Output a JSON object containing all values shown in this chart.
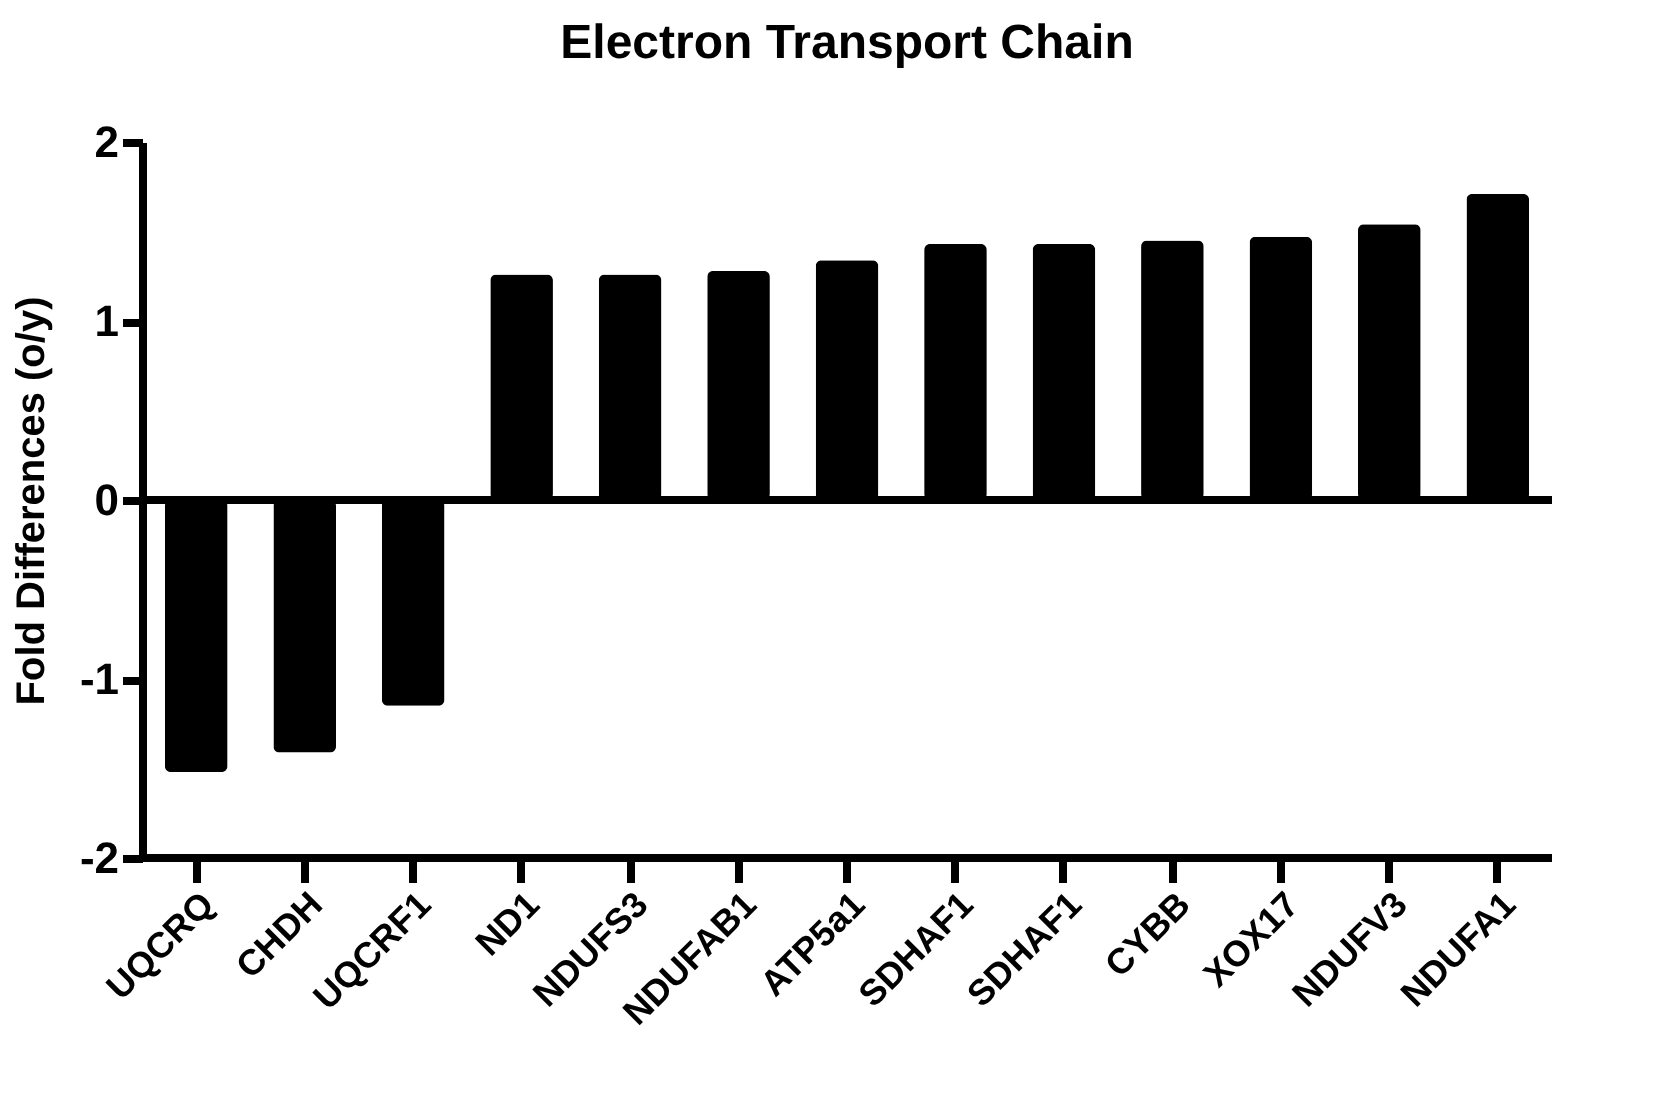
{
  "chart_data": {
    "type": "bar",
    "title": "Electron Transport Chain",
    "ylabel": "Fold Differences (o/y)",
    "categories": [
      "UQCRQ",
      "CHDH",
      "UQCRF1",
      "ND1",
      "NDUFS3",
      "NDUFAB1",
      "ATP5a1",
      "SDHAF1",
      "SDHAF1",
      "CYBB",
      "XOX17",
      "NDUFV3",
      "NDUFA1"
    ],
    "values": [
      -1.52,
      -1.41,
      -1.15,
      1.26,
      1.26,
      1.28,
      1.34,
      1.43,
      1.43,
      1.45,
      1.47,
      1.54,
      1.71
    ],
    "color": "#000000",
    "ylim": [
      -2,
      2
    ],
    "yticks": [
      -2,
      -1,
      0,
      1,
      2
    ],
    "ref_lines": [
      {
        "axis": "y",
        "value": 0
      }
    ]
  }
}
